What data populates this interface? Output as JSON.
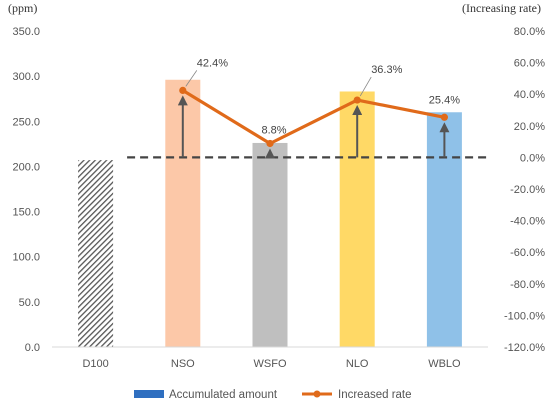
{
  "chart_data": {
    "type": "bar",
    "categories": [
      "D100",
      "NSO",
      "WSFO",
      "NLO",
      "WBLO"
    ],
    "left_axis": {
      "unit": "(ppm)",
      "min": 0,
      "max": 350,
      "step": 50,
      "tick_labels": [
        "0.0",
        "50.0",
        "100.0",
        "150.0",
        "200.0",
        "250.0",
        "300.0",
        "350.0"
      ]
    },
    "right_axis": {
      "unit": "(Increasing rate)",
      "min": -120,
      "max": 80,
      "step": 20,
      "tick_labels": [
        "-120.0%",
        "-100.0%",
        "-80.0%",
        "-60.0%",
        "-40.0%",
        "-20.0%",
        "0.0%",
        "20.0%",
        "40.0%",
        "60.0%",
        "80.0%"
      ]
    },
    "series": [
      {
        "name": "Accumulated amount",
        "type": "bar",
        "axis": "left",
        "values": [
          207,
          296,
          226,
          283,
          260
        ],
        "colors": [
          "#555555",
          "#fcc8a8",
          "#bfbfbf",
          "#ffd966",
          "#8fc1e8"
        ],
        "patterns": [
          "hatch",
          "solid",
          "solid",
          "solid",
          "solid"
        ],
        "legend_color": "#2f6fc0"
      },
      {
        "name": "Increased rate",
        "type": "line",
        "axis": "right",
        "values": [
          null,
          42.4,
          8.8,
          36.3,
          25.4
        ],
        "data_labels": [
          "",
          "42.4%",
          "8.8%",
          "36.3%",
          "25.4%"
        ],
        "color": "#e06a1a"
      }
    ],
    "baseline": {
      "axis": "right",
      "value": 0,
      "style": "dashed",
      "color": "#444444"
    },
    "arrows": {
      "from": "baseline",
      "to": "line-points",
      "color": "#555555"
    },
    "legend": {
      "position": "bottom"
    },
    "grid": false
  }
}
